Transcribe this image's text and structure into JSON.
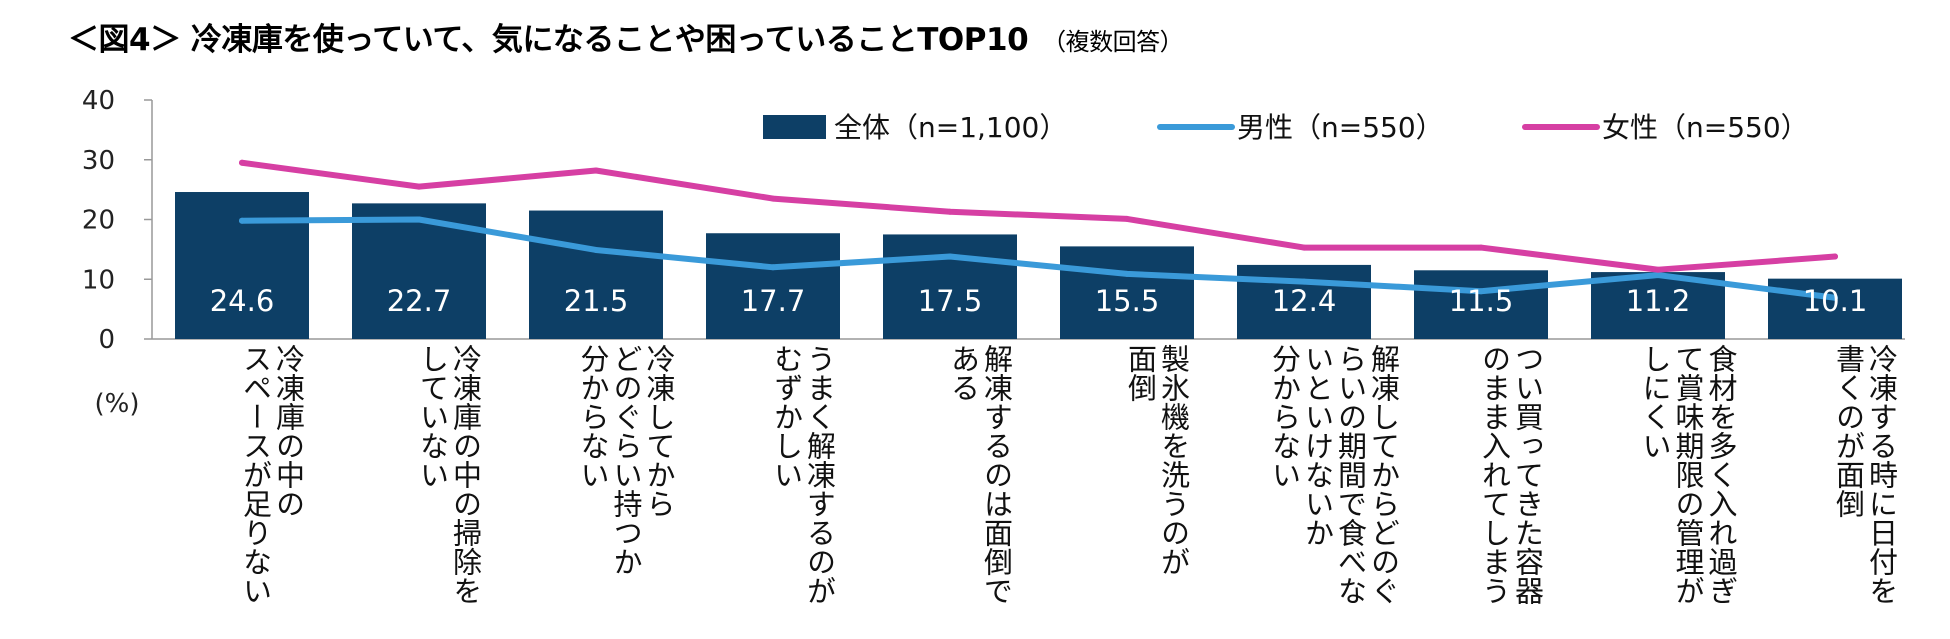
{
  "title": "＜図4＞ 冷凍庫を使っていて、気になることや困っていることTOP10",
  "subtitle": "（複数回答）",
  "chart_data": {
    "type": "bar",
    "title": "＜図4＞ 冷凍庫を使っていて、気になることや困っていることTOP10",
    "subtitle": "（複数回答）",
    "unit_label": "(%)",
    "ylim": [
      0,
      40
    ],
    "yticks": [
      0,
      10,
      20,
      30,
      40
    ],
    "legend_position": "top-right",
    "categories": [
      [
        "冷凍庫の中の",
        "スペースが足りない"
      ],
      [
        "冷凍庫の中の掃除を",
        "していない"
      ],
      [
        "冷凍してから",
        "どのぐらい持つか",
        "分からない"
      ],
      [
        "うまく解凍するのが",
        "むずかしい"
      ],
      [
        "解凍するのは面倒で",
        "ある"
      ],
      [
        "製氷機を洗うのが",
        "面倒"
      ],
      [
        "解凍してからどのぐ",
        "らいの期間で食べな",
        "いといけないか",
        "分からない"
      ],
      [
        "つい買ってきた容器",
        "のまま入れてしまう"
      ],
      [
        "食材を多く入れ過ぎ",
        "て賞味期限の管理が",
        "しにくい"
      ],
      [
        "冷凍する時に日付を",
        "書くのが面倒"
      ]
    ],
    "series": [
      {
        "name": "全体（n=1,100）",
        "type": "bar",
        "color": "#0d3f66",
        "values": [
          24.6,
          22.7,
          21.5,
          17.7,
          17.5,
          15.5,
          12.4,
          11.5,
          11.2,
          10.1
        ],
        "labels": [
          "24.6",
          "22.7",
          "21.5",
          "17.7",
          "17.5",
          "15.5",
          "12.4",
          "11.5",
          "11.2",
          "10.1"
        ]
      },
      {
        "name": "男性（n=550）",
        "type": "line",
        "color": "#3a9ad9",
        "values": [
          19.8,
          20.0,
          14.9,
          12.0,
          13.8,
          10.9,
          9.6,
          8.0,
          10.7,
          6.9
        ]
      },
      {
        "name": "女性（n=550）",
        "type": "line",
        "color": "#d63fa3",
        "values": [
          29.5,
          25.5,
          28.2,
          23.5,
          21.3,
          20.1,
          15.3,
          15.3,
          11.6,
          13.8
        ]
      }
    ]
  }
}
